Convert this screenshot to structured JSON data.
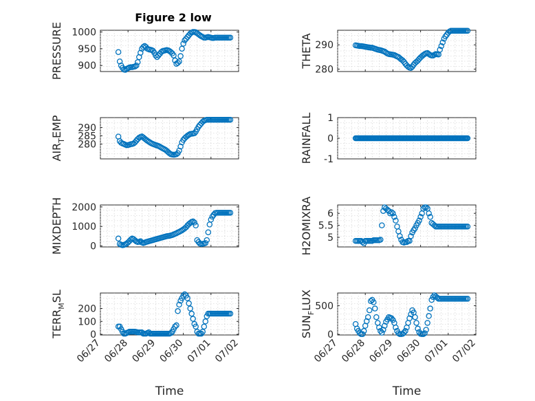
{
  "figure": {
    "title": "Figure 2 low",
    "marker_color": "#0072BD",
    "grid": true,
    "marker": "open-circle"
  },
  "x_axis": {
    "label": "Time",
    "tick_labels": [
      "06/27",
      "06/28",
      "06/29",
      "06/30",
      "07/01",
      "07/02"
    ],
    "tick_days": [
      0,
      1,
      2,
      3,
      4,
      5
    ],
    "range_days": [
      0,
      5
    ],
    "day_zero": "06/27"
  },
  "chart_data": [
    {
      "type": "scatter",
      "name": "PRESSURE",
      "ylabel": "PRESSURE",
      "ylim": [
        882,
        1005
      ],
      "yticks": [
        900,
        950,
        1000
      ],
      "ytick_labels": [
        "900",
        "950",
        "1000"
      ],
      "title": "Figure 2 low",
      "x": [
        0.65,
        0.7,
        0.75,
        0.8,
        0.85,
        0.9,
        0.95,
        1.0,
        1.05,
        1.1,
        1.15,
        1.2,
        1.25,
        1.3,
        1.35,
        1.4,
        1.45,
        1.5,
        1.55,
        1.6,
        1.65,
        1.7,
        1.75,
        1.8,
        1.85,
        1.9,
        1.95,
        2.0,
        2.05,
        2.1,
        2.15,
        2.2,
        2.25,
        2.3,
        2.35,
        2.4,
        2.45,
        2.5,
        2.55,
        2.6,
        2.65,
        2.7,
        2.75,
        2.8,
        2.85,
        2.9,
        2.95,
        3.0,
        3.05,
        3.1,
        3.15,
        3.2,
        3.25,
        3.3,
        3.35,
        3.4,
        3.45,
        3.5,
        3.55,
        3.6,
        3.65,
        3.7,
        3.75,
        3.8,
        3.85,
        3.9,
        3.95,
        4.0,
        4.05,
        4.1,
        4.15,
        4.2,
        4.25,
        4.3,
        4.35,
        4.4,
        4.45,
        4.5,
        4.55,
        4.6,
        4.65,
        4.7
      ],
      "y": [
        940,
        912,
        900,
        893,
        888,
        887,
        890,
        892,
        894,
        895,
        895,
        896,
        897,
        900,
        910,
        925,
        938,
        950,
        955,
        958,
        955,
        950,
        948,
        947,
        946,
        944,
        938,
        930,
        925,
        930,
        935,
        940,
        943,
        944,
        945,
        946,
        945,
        943,
        940,
        936,
        930,
        915,
        905,
        908,
        912,
        928,
        950,
        965,
        975,
        980,
        985,
        990,
        995,
        998,
        1000,
        1000,
        999,
        996,
        993,
        990,
        987,
        985,
        983,
        983,
        984,
        985,
        984,
        983,
        982,
        982,
        983,
        983,
        983,
        983,
        983,
        983,
        983,
        983,
        983,
        983,
        983,
        983
      ]
    },
    {
      "type": "scatter",
      "name": "THETA",
      "ylabel": "THETA",
      "ylim": [
        279,
        296
      ],
      "yticks": [
        280,
        290
      ],
      "ytick_labels": [
        "280",
        "290"
      ],
      "x": [
        0.65,
        0.7,
        0.75,
        0.8,
        0.85,
        0.9,
        0.95,
        1.0,
        1.05,
        1.1,
        1.15,
        1.2,
        1.25,
        1.3,
        1.35,
        1.4,
        1.45,
        1.5,
        1.55,
        1.6,
        1.65,
        1.7,
        1.75,
        1.8,
        1.85,
        1.9,
        1.95,
        2.0,
        2.05,
        2.1,
        2.15,
        2.2,
        2.25,
        2.3,
        2.35,
        2.4,
        2.45,
        2.5,
        2.55,
        2.6,
        2.65,
        2.7,
        2.75,
        2.8,
        2.85,
        2.9,
        2.95,
        3.0,
        3.05,
        3.1,
        3.15,
        3.2,
        3.25,
        3.3,
        3.35,
        3.4,
        3.45,
        3.5,
        3.55,
        3.6,
        3.65,
        3.7,
        3.75,
        3.8,
        3.85,
        3.9,
        3.95,
        4.0,
        4.05,
        4.1,
        4.15,
        4.2,
        4.25,
        4.3,
        4.35,
        4.4,
        4.45,
        4.5,
        4.55,
        4.6,
        4.65,
        4.7
      ],
      "y": [
        289.8,
        289.7,
        289.6,
        289.5,
        289.5,
        289.4,
        289.3,
        289.2,
        289.1,
        289.0,
        288.9,
        288.8,
        288.8,
        288.6,
        288.4,
        288.2,
        288.0,
        287.9,
        287.8,
        287.6,
        287.4,
        287.2,
        286.8,
        286.4,
        286.2,
        286.1,
        286.0,
        285.9,
        285.8,
        285.5,
        285.2,
        285.0,
        284.5,
        284.0,
        283.6,
        283.0,
        282.2,
        281.5,
        281.0,
        280.6,
        280.5,
        281.0,
        281.8,
        282.5,
        283.0,
        283.5,
        284.2,
        284.8,
        285.3,
        285.8,
        286.2,
        286.5,
        286.6,
        286.2,
        285.8,
        285.6,
        285.6,
        285.9,
        286.2,
        286.1,
        286.0,
        288.0,
        289.5,
        291.0,
        292.5,
        293.5,
        294.2,
        295.0,
        295.5,
        295.8,
        295.8,
        295.8,
        295.8,
        295.8,
        295.8,
        295.8,
        295.8,
        295.8,
        295.8,
        295.8,
        295.8,
        295.8
      ]
    },
    {
      "type": "scatter",
      "name": "AIR_TEMP",
      "ylabel": "AIR_TEMP",
      "ylabel_parts": [
        "AIR",
        "T",
        "EMP"
      ],
      "ylim": [
        271,
        296
      ],
      "yticks": [
        280,
        285,
        290
      ],
      "ytick_labels": [
        "280",
        "285",
        "290"
      ],
      "x": [
        0.65,
        0.7,
        0.75,
        0.8,
        0.85,
        0.9,
        0.95,
        1.0,
        1.05,
        1.1,
        1.15,
        1.2,
        1.25,
        1.3,
        1.35,
        1.4,
        1.45,
        1.5,
        1.55,
        1.6,
        1.65,
        1.7,
        1.75,
        1.8,
        1.85,
        1.9,
        1.95,
        2.0,
        2.05,
        2.1,
        2.15,
        2.2,
        2.25,
        2.3,
        2.35,
        2.4,
        2.45,
        2.5,
        2.55,
        2.6,
        2.65,
        2.7,
        2.75,
        2.8,
        2.85,
        2.9,
        2.95,
        3.0,
        3.05,
        3.1,
        3.15,
        3.2,
        3.25,
        3.3,
        3.35,
        3.4,
        3.45,
        3.5,
        3.55,
        3.6,
        3.65,
        3.7,
        3.75,
        3.8,
        3.85,
        3.9,
        3.95,
        4.0,
        4.05,
        4.1,
        4.15,
        4.2,
        4.25,
        4.3,
        4.35,
        4.4,
        4.45,
        4.5,
        4.55,
        4.6,
        4.65,
        4.7
      ],
      "y": [
        284.5,
        281.8,
        280.8,
        280.3,
        280.0,
        279.6,
        279.3,
        279.4,
        279.6,
        279.9,
        280.0,
        280.3,
        281.0,
        282.0,
        283.0,
        283.8,
        284.3,
        284.6,
        284.0,
        283.3,
        282.6,
        282.0,
        281.4,
        280.9,
        280.4,
        280.0,
        279.7,
        279.4,
        279.1,
        278.8,
        278.4,
        277.9,
        277.4,
        277.0,
        276.5,
        275.9,
        275.1,
        274.4,
        273.8,
        273.6,
        273.5,
        273.6,
        273.8,
        274.5,
        276.0,
        278.5,
        281.0,
        282.5,
        283.5,
        284.3,
        285.0,
        285.6,
        286.1,
        286.2,
        286.3,
        286.5,
        287.5,
        289.0,
        290.5,
        291.5,
        292.5,
        293.5,
        294.1,
        294.5,
        294.7,
        294.7,
        294.7,
        294.7,
        294.7,
        294.7,
        294.7,
        294.7,
        294.7,
        294.7,
        294.7,
        294.7,
        294.7,
        294.7,
        294.7,
        294.7,
        294.7,
        294.7
      ]
    },
    {
      "type": "scatter",
      "name": "RAINFALL",
      "ylabel": "RAINFALL",
      "ylim": [
        -1,
        1
      ],
      "yticks": [
        -1,
        0,
        1
      ],
      "ytick_labels": [
        "-1",
        "0",
        "1"
      ],
      "x_range": [
        0.65,
        4.7
      ],
      "y_value": 0,
      "count": 120
    },
    {
      "type": "scatter",
      "name": "MIXDEPTH",
      "ylabel": "MIXDEPTH",
      "ylim": [
        -50,
        2100
      ],
      "yticks": [
        0,
        1000,
        2000
      ],
      "ytick_labels": [
        "0",
        "1000",
        "2000"
      ],
      "x": [
        0.65,
        0.7,
        0.75,
        0.8,
        0.85,
        0.9,
        0.95,
        1.0,
        1.05,
        1.1,
        1.15,
        1.2,
        1.25,
        1.3,
        1.35,
        1.4,
        1.45,
        1.5,
        1.55,
        1.6,
        1.65,
        1.7,
        1.75,
        1.8,
        1.85,
        1.9,
        1.95,
        2.0,
        2.05,
        2.1,
        2.15,
        2.2,
        2.25,
        2.3,
        2.35,
        2.4,
        2.45,
        2.5,
        2.55,
        2.6,
        2.65,
        2.7,
        2.75,
        2.8,
        2.85,
        2.9,
        2.95,
        3.0,
        3.05,
        3.1,
        3.15,
        3.2,
        3.25,
        3.3,
        3.35,
        3.4,
        3.45,
        3.5,
        3.55,
        3.6,
        3.65,
        3.7,
        3.75,
        3.8,
        3.85,
        3.9,
        3.95,
        4.0,
        4.05,
        4.1,
        4.15,
        4.2,
        4.25,
        4.3,
        4.35,
        4.4,
        4.45,
        4.5,
        4.55,
        4.6,
        4.65,
        4.7
      ],
      "y": [
        380,
        100,
        60,
        40,
        50,
        80,
        120,
        180,
        250,
        330,
        380,
        350,
        290,
        230,
        200,
        210,
        240,
        180,
        150,
        170,
        200,
        220,
        240,
        260,
        280,
        300,
        320,
        340,
        360,
        380,
        400,
        420,
        440,
        460,
        480,
        500,
        510,
        520,
        540,
        560,
        590,
        620,
        650,
        690,
        720,
        760,
        800,
        850,
        900,
        960,
        1050,
        1120,
        1180,
        1230,
        1260,
        1200,
        1050,
        300,
        200,
        120,
        100,
        110,
        120,
        150,
        300,
        700,
        1100,
        1350,
        1500,
        1600,
        1680,
        1700,
        1700,
        1700,
        1700,
        1700,
        1700,
        1700,
        1700,
        1700,
        1700,
        1700
      ]
    },
    {
      "type": "scatter",
      "name": "H2OMIXRA",
      "ylabel": "H2OMIXRA",
      "ylim": [
        4.6,
        6.35
      ],
      "yticks": [
        5,
        5.5,
        6
      ],
      "ytick_labels": [
        "5",
        "5.5",
        "6"
      ],
      "x": [
        0.65,
        0.7,
        0.75,
        0.8,
        0.85,
        0.9,
        0.95,
        1.0,
        1.05,
        1.1,
        1.15,
        1.2,
        1.25,
        1.3,
        1.35,
        1.4,
        1.45,
        1.5,
        1.55,
        1.6,
        1.65,
        1.7,
        1.75,
        1.8,
        1.85,
        1.9,
        1.95,
        2.0,
        2.05,
        2.1,
        2.15,
        2.2,
        2.25,
        2.3,
        2.35,
        2.4,
        2.45,
        2.5,
        2.55,
        2.6,
        2.65,
        2.7,
        2.75,
        2.8,
        2.85,
        2.9,
        2.95,
        3.0,
        3.05,
        3.1,
        3.15,
        3.2,
        3.25,
        3.3,
        3.35,
        3.4,
        3.45,
        3.5,
        3.55,
        3.6,
        3.65,
        3.7,
        3.75,
        3.8,
        3.85,
        3.9,
        3.95,
        4.0,
        4.05,
        4.1,
        4.15,
        4.2,
        4.25,
        4.3,
        4.35,
        4.4,
        4.45,
        4.5,
        4.55,
        4.6,
        4.65,
        4.7
      ],
      "y": [
        4.85,
        4.85,
        4.85,
        4.85,
        4.85,
        4.8,
        4.75,
        4.85,
        4.85,
        4.85,
        4.85,
        4.85,
        4.85,
        4.88,
        4.88,
        4.88,
        4.88,
        4.88,
        4.9,
        5.5,
        6.1,
        6.25,
        6.2,
        6.15,
        6.1,
        6.0,
        6.05,
        6.0,
        5.85,
        5.7,
        5.45,
        5.25,
        5.05,
        4.9,
        4.8,
        4.78,
        4.8,
        4.8,
        4.85,
        4.85,
        5.05,
        5.2,
        5.3,
        5.38,
        5.5,
        5.6,
        5.7,
        5.85,
        6.0,
        6.2,
        6.25,
        6.25,
        6.2,
        6.0,
        5.85,
        5.6,
        5.55,
        5.5,
        5.45,
        5.45,
        5.45,
        5.45,
        5.45,
        5.45,
        5.45,
        5.45,
        5.45,
        5.45,
        5.45,
        5.45,
        5.45,
        5.45,
        5.45,
        5.45,
        5.45,
        5.45,
        5.45,
        5.45,
        5.45,
        5.45,
        5.45,
        5.45
      ]
    },
    {
      "type": "scatter",
      "name": "TERR_MSL",
      "ylabel": "TERR_MSL",
      "ylabel_parts": [
        "TERR",
        "M",
        "SL"
      ],
      "ylim": [
        -5,
        320
      ],
      "yticks": [
        0,
        100,
        200
      ],
      "ytick_labels": [
        "0",
        "100",
        "200"
      ],
      "x": [
        0.65,
        0.7,
        0.75,
        0.8,
        0.85,
        0.9,
        0.95,
        1.0,
        1.05,
        1.1,
        1.15,
        1.2,
        1.25,
        1.3,
        1.35,
        1.4,
        1.45,
        1.5,
        1.55,
        1.6,
        1.65,
        1.7,
        1.75,
        1.8,
        1.85,
        1.9,
        1.95,
        2.0,
        2.05,
        2.1,
        2.15,
        2.2,
        2.25,
        2.3,
        2.35,
        2.4,
        2.45,
        2.5,
        2.55,
        2.6,
        2.65,
        2.7,
        2.75,
        2.8,
        2.85,
        2.9,
        2.95,
        3.0,
        3.05,
        3.1,
        3.15,
        3.2,
        3.25,
        3.3,
        3.35,
        3.4,
        3.45,
        3.5,
        3.55,
        3.6,
        3.65,
        3.7,
        3.75,
        3.8,
        3.85,
        3.9,
        3.95,
        4.0,
        4.05,
        4.1,
        4.15,
        4.2,
        4.25,
        4.3,
        4.35,
        4.4,
        4.45,
        4.5,
        4.55,
        4.6,
        4.65,
        4.7
      ],
      "y": [
        60,
        60,
        40,
        20,
        5,
        5,
        10,
        15,
        20,
        20,
        20,
        20,
        20,
        18,
        15,
        15,
        15,
        15,
        5,
        5,
        5,
        10,
        15,
        5,
        5,
        5,
        5,
        5,
        5,
        5,
        5,
        5,
        5,
        5,
        5,
        5,
        5,
        5,
        10,
        20,
        40,
        60,
        70,
        180,
        230,
        260,
        280,
        300,
        310,
        300,
        280,
        240,
        200,
        160,
        120,
        80,
        60,
        20,
        5,
        5,
        5,
        20,
        60,
        100,
        140,
        160,
        160,
        160,
        160,
        160,
        160,
        160,
        160,
        160,
        160,
        160,
        160,
        160,
        160,
        160,
        160,
        160
      ]
    },
    {
      "type": "scatter",
      "name": "SUN_FLUX",
      "ylabel": "SUN_FLUX",
      "ylabel_parts": [
        "SUN",
        "F",
        "LUX"
      ],
      "ylim": [
        -10,
        720
      ],
      "yticks": [
        0,
        500
      ],
      "ytick_labels": [
        "0",
        "500"
      ],
      "x": [
        0.65,
        0.7,
        0.75,
        0.8,
        0.85,
        0.9,
        0.95,
        1.0,
        1.05,
        1.1,
        1.15,
        1.2,
        1.25,
        1.3,
        1.35,
        1.4,
        1.45,
        1.5,
        1.55,
        1.6,
        1.65,
        1.7,
        1.75,
        1.8,
        1.85,
        1.9,
        1.95,
        2.0,
        2.05,
        2.1,
        2.15,
        2.2,
        2.25,
        2.3,
        2.35,
        2.4,
        2.45,
        2.5,
        2.55,
        2.6,
        2.65,
        2.7,
        2.75,
        2.8,
        2.85,
        2.9,
        2.95,
        3.0,
        3.05,
        3.1,
        3.15,
        3.2,
        3.25,
        3.3,
        3.35,
        3.4,
        3.45,
        3.5,
        3.55,
        3.6,
        3.65,
        3.7,
        3.75,
        3.8,
        3.85,
        3.9,
        3.95,
        4.0,
        4.05,
        4.1,
        4.15,
        4.2,
        4.25,
        4.3,
        4.35,
        4.4,
        4.45,
        4.5,
        4.55,
        4.6,
        4.65,
        4.7
      ],
      "y": [
        180,
        100,
        60,
        20,
        5,
        5,
        60,
        150,
        230,
        300,
        420,
        580,
        600,
        560,
        450,
        300,
        200,
        120,
        60,
        30,
        80,
        150,
        220,
        260,
        300,
        290,
        280,
        250,
        200,
        120,
        60,
        20,
        5,
        5,
        10,
        30,
        60,
        120,
        200,
        280,
        350,
        420,
        380,
        300,
        200,
        100,
        40,
        10,
        5,
        5,
        20,
        80,
        200,
        320,
        450,
        600,
        650,
        680,
        660,
        640,
        620,
        620,
        620,
        620,
        620,
        620,
        620,
        620,
        620,
        620,
        620,
        620,
        620,
        620,
        620,
        620,
        620,
        620,
        620,
        620,
        620,
        620
      ]
    }
  ]
}
